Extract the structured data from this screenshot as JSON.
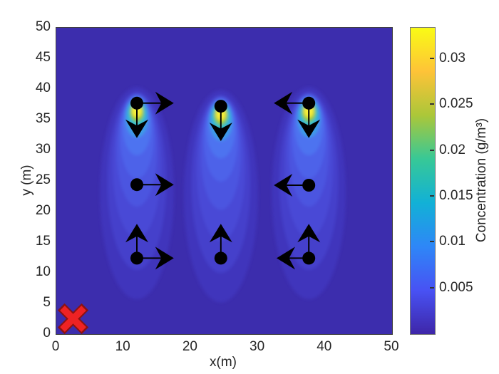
{
  "axes": {
    "xlabel": "x(m)",
    "ylabel": "y (m)",
    "xlim": [
      0,
      50
    ],
    "ylim": [
      0,
      50
    ],
    "xticks": [
      0,
      10,
      20,
      30,
      40,
      50
    ],
    "yticks": [
      0,
      5,
      10,
      15,
      20,
      25,
      30,
      35,
      40,
      45,
      50
    ]
  },
  "colorbar": {
    "label": "Concentration (g/m³)",
    "tick_labels": [
      "0.005",
      "0.01",
      "0.015",
      "0.02",
      "0.025",
      "0.03"
    ],
    "tick_values": [
      0.005,
      0.01,
      0.015,
      0.02,
      0.025,
      0.03
    ],
    "colormap": "parula"
  },
  "chart_data": {
    "type": "heatmap",
    "title": "",
    "xlabel": "x(m)",
    "ylabel": "y (m)",
    "xlim": [
      0,
      50
    ],
    "ylim": [
      0,
      50
    ],
    "grid": false,
    "colorbar_label": "Concentration (g/m³)",
    "colorbar_ticks": [
      0.005,
      0.01,
      0.015,
      0.02,
      0.025,
      0.03
    ],
    "colormap": "parula",
    "plumes": [
      {
        "x": 12,
        "source_y": 37.7,
        "hotspot_y": 36.3,
        "peak_value_est": 0.033,
        "tail_extent_y": 6
      },
      {
        "x": 24.5,
        "source_y": 37.2,
        "hotspot_y": 35.9,
        "peak_value_est": 0.033,
        "tail_extent_y": 6
      },
      {
        "x": 37.6,
        "source_y": 37.7,
        "hotspot_y": 36.3,
        "peak_value_est": 0.033,
        "tail_extent_y": 6
      }
    ],
    "markers": [
      {
        "x": 12,
        "y": 37.7,
        "arrows": [
          {
            "dx": 5.5,
            "dy": 0
          },
          {
            "dx": 0,
            "dy": -5.7
          }
        ]
      },
      {
        "x": 24.5,
        "y": 37.2,
        "arrows": [
          {
            "dx": 0,
            "dy": -5.7
          }
        ]
      },
      {
        "x": 37.6,
        "y": 37.7,
        "arrows": [
          {
            "dx": -5.2,
            "dy": 0
          },
          {
            "dx": 0,
            "dy": -5.7
          }
        ]
      },
      {
        "x": 12,
        "y": 24.4,
        "arrows": [
          {
            "dx": 5.5,
            "dy": 0
          }
        ]
      },
      {
        "x": 37.6,
        "y": 24.3,
        "arrows": [
          {
            "dx": -5.2,
            "dy": 0
          }
        ]
      },
      {
        "x": 12,
        "y": 12.4,
        "arrows": [
          {
            "dx": 0,
            "dy": 5.6
          },
          {
            "dx": 5.5,
            "dy": 0
          }
        ]
      },
      {
        "x": 24.5,
        "y": 12.4,
        "arrows": [
          {
            "dx": 0,
            "dy": 5.6
          }
        ]
      },
      {
        "x": 37.6,
        "y": 12.4,
        "arrows": [
          {
            "dx": 0,
            "dy": 5.6
          },
          {
            "dx": -4.8,
            "dy": 0
          }
        ]
      }
    ],
    "x_marker": {
      "shape": "x",
      "x": 2.5,
      "y": 2.5,
      "fill": "#ee2224",
      "edge": "#8b1212"
    }
  },
  "colors": {
    "field_background": "#3c2dad",
    "marker": "#000000",
    "tick_text": "#262626"
  }
}
